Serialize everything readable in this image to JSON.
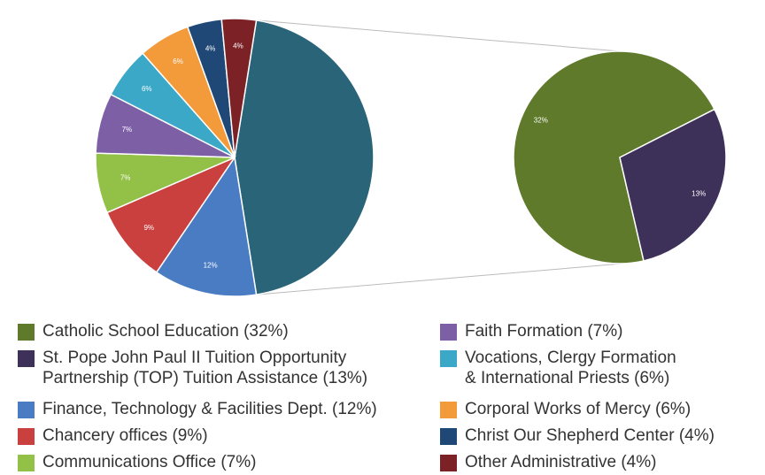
{
  "chart_data": {
    "type": "pie_of_pie",
    "combined_color": "#2a6478",
    "items": [
      {
        "name": [
          "Catholic School Education (32%)"
        ],
        "value": 32,
        "value_label": "32%",
        "color": "#5f7a2a",
        "pie": "secondary"
      },
      {
        "name": [
          "St. Pope John Paul II Tuition Opportunity",
          "Partnership (TOP) Tuition Assistance (13%)"
        ],
        "value": 13,
        "value_label": "13%",
        "color": "#3e3159",
        "pie": "secondary"
      },
      {
        "name": [
          "Finance, Technology & Facilities Dept. (12%)"
        ],
        "value": 12,
        "value_label": "12%",
        "color": "#4a7cc4",
        "pie": "main"
      },
      {
        "name": [
          "Chancery offices (9%)"
        ],
        "value": 9,
        "value_label": "9%",
        "color": "#c9403f",
        "pie": "main"
      },
      {
        "name": [
          "Communications Office (7%)"
        ],
        "value": 7,
        "value_label": "7%",
        "color": "#93c047",
        "pie": "main"
      },
      {
        "name": [
          "Faith Formation (7%)"
        ],
        "value": 7,
        "value_label": "7%",
        "color": "#7d5fa6",
        "pie": "main"
      },
      {
        "name": [
          "Vocations, Clergy Formation",
          "& International Priests (6%)"
        ],
        "value": 6,
        "value_label": "6%",
        "color": "#3aa8c6",
        "pie": "main"
      },
      {
        "name": [
          "Corporal Works of Mercy (6%)"
        ],
        "value": 6,
        "value_label": "6%",
        "color": "#f39a3a",
        "pie": "main"
      },
      {
        "name": [
          "Christ Our Shepherd Center (4%)"
        ],
        "value": 4,
        "value_label": "4%",
        "color": "#1f4877",
        "pie": "main"
      },
      {
        "name": [
          "Other Administrative (4%)"
        ],
        "value": 4,
        "value_label": "4%",
        "color": "#7c2226",
        "pie": "main"
      }
    ]
  }
}
